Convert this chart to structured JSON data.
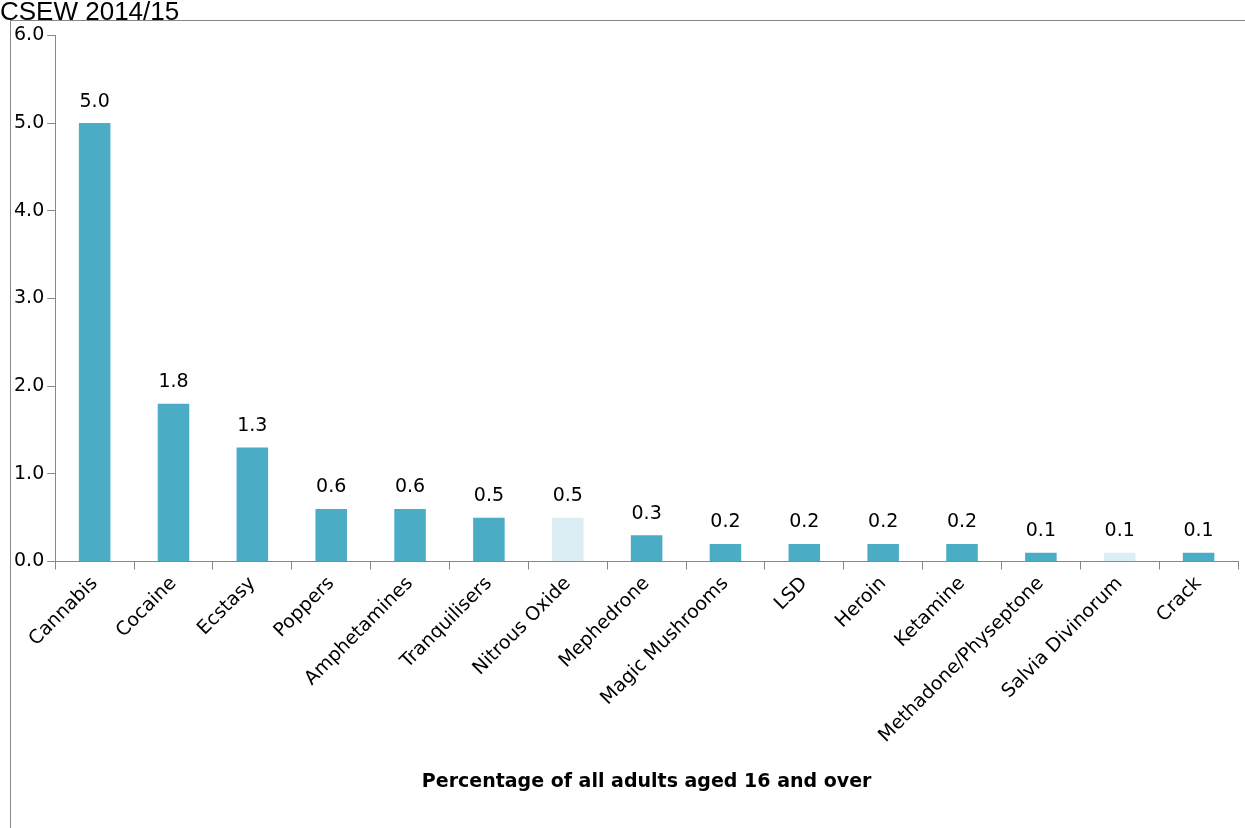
{
  "chart_data": {
    "type": "bar",
    "title": "CSEW 2014/15",
    "xlabel": "Percentage of all adults aged 16 and over",
    "categories": [
      "Cannabis",
      "Cocaine",
      "Ecstasy",
      "Poppers",
      "Amphetamines",
      "Tranquilisers",
      "Nitrous Oxide",
      "Mephedrone",
      "Magic Mushrooms",
      "LSD",
      "Heroin",
      "Ketamine",
      "Methadone/Physeptone",
      "Salvia Divinorum",
      "Crack"
    ],
    "values": [
      5.0,
      1.8,
      1.3,
      0.6,
      0.6,
      0.5,
      0.5,
      0.3,
      0.2,
      0.2,
      0.2,
      0.2,
      0.1,
      0.1,
      0.1
    ],
    "value_labels": [
      "5.0",
      "1.8",
      "1.3",
      "0.6",
      "0.6",
      "0.5",
      "0.5",
      "0.3",
      "0.2",
      "0.2",
      "0.2",
      "0.2",
      "0.1",
      "0.1",
      "0.1"
    ],
    "colors": [
      "#4bacc6",
      "#4bacc6",
      "#4bacc6",
      "#4bacc6",
      "#4bacc6",
      "#4bacc6",
      "#dbeef4",
      "#4bacc6",
      "#4bacc6",
      "#4bacc6",
      "#4bacc6",
      "#4bacc6",
      "#4bacc6",
      "#dbeef4",
      "#4bacc6"
    ],
    "ylim": [
      0,
      6
    ],
    "yticks": [
      {
        "value": 0,
        "label": "0.0"
      },
      {
        "value": 1,
        "label": "1.0"
      },
      {
        "value": 2,
        "label": "2.0"
      },
      {
        "value": 3,
        "label": "3.0"
      },
      {
        "value": 4,
        "label": "4.0"
      },
      {
        "value": 5,
        "label": "5.0"
      },
      {
        "value": 6,
        "label": "6.0"
      }
    ],
    "grid": false,
    "legend": false
  }
}
